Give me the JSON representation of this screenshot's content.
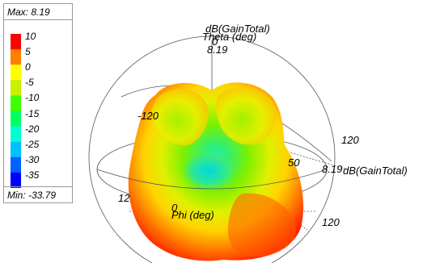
{
  "chart_data": {
    "type": "3d-radiation-pattern",
    "quantity": "dB(GainTotal)",
    "max_label": "Max: 8.19",
    "min_label": "Min: -33.79",
    "max_value": 8.19,
    "min_value": -33.79,
    "legend": {
      "ticks": [
        "10",
        "5",
        "0",
        "-5",
        "-10",
        "-15",
        "-20",
        "-25",
        "-30",
        "-35"
      ],
      "colors": [
        "#ff0000",
        "#ff8000",
        "#ffff00",
        "#c8f000",
        "#40ff00",
        "#00ff60",
        "#00ffd0",
        "#00c0ff",
        "#0060ff",
        "#0000ff"
      ]
    },
    "axes": {
      "theta_title": "Theta (deg)",
      "phi_title": "Phi (deg)",
      "radial_title": "dB(GainTotal)",
      "top_label": "dB(GainTotal)",
      "theta_zero": "0",
      "top_value": "8.19",
      "right_value": "8.19",
      "label_neg120": "-120",
      "label_120_upper": "120",
      "label_120_lower": "120",
      "label_50": "50",
      "label_0": "0",
      "label_12": "12"
    }
  }
}
